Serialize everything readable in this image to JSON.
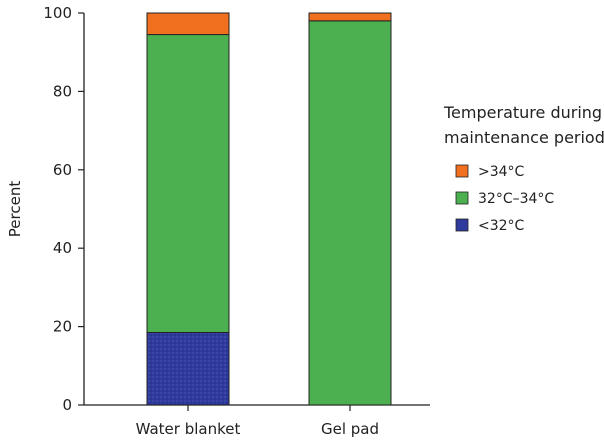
{
  "chart_data": {
    "type": "bar",
    "stacked": true,
    "categories": [
      "Water blanket",
      "Gel pad"
    ],
    "ylabel": "Percent",
    "xlabel": "",
    "ylim": [
      0,
      100
    ],
    "yticks": [
      "0",
      "20",
      "40",
      "60",
      "80",
      "100"
    ],
    "grid": false,
    "legend_position": "right",
    "legend_title_lines": [
      "Temperature during",
      "maintenance period"
    ],
    "series": [
      {
        "name": "<32°C",
        "color": "#2e3a9c",
        "values": [
          18.5,
          0
        ]
      },
      {
        "name": "32°C–34°C",
        "color": "#4caf50",
        "values": [
          76,
          98
        ]
      },
      {
        "name": ">34°C",
        "color": "#f07020",
        "values": [
          5.5,
          2
        ]
      }
    ],
    "legend_order": [
      ">34°C",
      "32°C–34°C",
      "<32°C"
    ]
  }
}
